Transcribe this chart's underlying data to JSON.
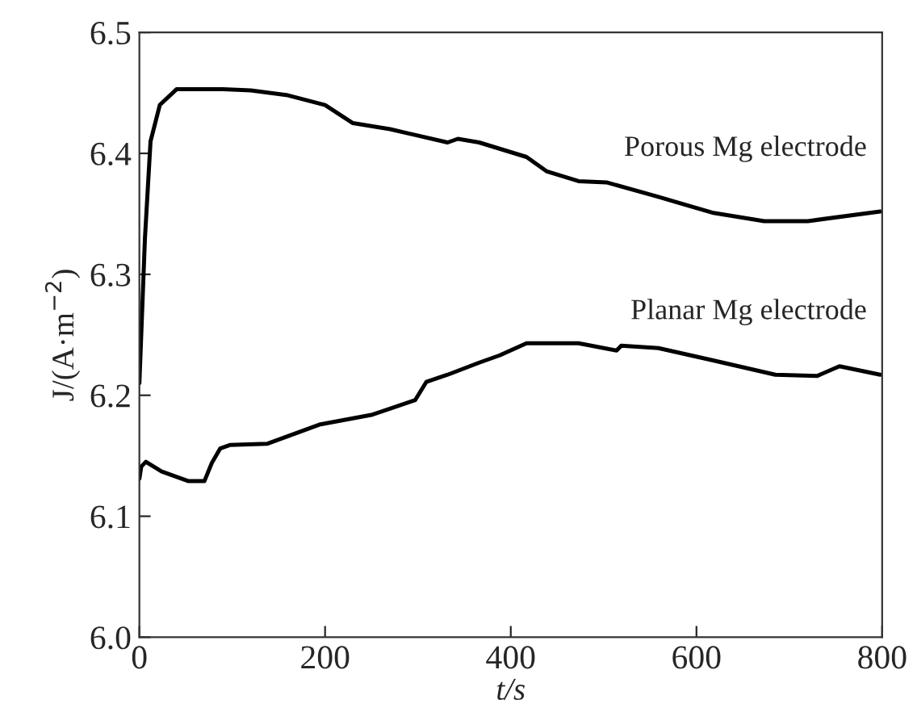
{
  "chart_data": {
    "type": "line",
    "xlabel": "t/s",
    "ylabel": "J/(A·m$^{−2}$)",
    "xlim": [
      0,
      800
    ],
    "ylim": [
      6.0,
      6.5
    ],
    "xticks": [
      0,
      200,
      400,
      600,
      800
    ],
    "yticks": [
      {
        "value": 6.0,
        "label": "6.0"
      },
      6.1,
      6.2,
      6.3,
      6.4,
      6.5
    ],
    "grid": false,
    "legend": false,
    "line_style": "solid",
    "marker": "none",
    "series": [
      {
        "name": "Porous Mg electrode",
        "color": "#000000",
        "x": [
          0,
          6,
          12,
          22,
          40,
          90,
          120,
          160,
          200,
          230,
          270,
          332,
          343,
          366,
          417,
          439,
          473,
          503,
          559,
          617,
          673,
          720,
          798
        ],
        "values": [
          6.21,
          6.33,
          6.41,
          6.44,
          6.453,
          6.453,
          6.452,
          6.448,
          6.44,
          6.425,
          6.42,
          6.409,
          6.412,
          6.409,
          6.397,
          6.385,
          6.377,
          6.376,
          6.364,
          6.351,
          6.344,
          6.344,
          6.352
        ]
      },
      {
        "name": "Planar Mg electrode",
        "color": "#000000",
        "x": [
          0,
          2,
          7,
          24,
          53,
          70,
          78,
          87,
          98,
          138,
          195,
          251,
          297,
          309,
          332,
          366,
          388,
          417,
          473,
          514,
          519,
          559,
          617,
          685,
          730,
          754,
          798
        ],
        "values": [
          6.131,
          6.141,
          6.145,
          6.137,
          6.129,
          6.129,
          6.144,
          6.156,
          6.159,
          6.16,
          6.176,
          6.184,
          6.196,
          6.211,
          6.217,
          6.227,
          6.233,
          6.243,
          6.243,
          6.237,
          6.241,
          6.239,
          6.229,
          6.217,
          6.216,
          6.224,
          6.217
        ]
      }
    ]
  }
}
